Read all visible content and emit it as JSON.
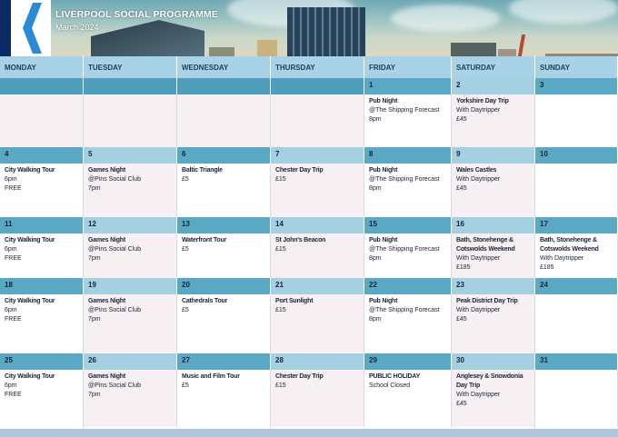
{
  "header": {
    "title": "LIVERPOOL SOCIAL PROGRAMME",
    "subtitle": "March 2024"
  },
  "weekdays": [
    "MONDAY",
    "TUESDAY",
    "WEDNESDAY",
    "THURSDAY",
    "FRIDAY",
    "SATURDAY",
    "SUNDAY"
  ],
  "weeks": [
    {
      "days": [
        {
          "num": "",
          "lines": []
        },
        {
          "num": "",
          "lines": []
        },
        {
          "num": "",
          "lines": []
        },
        {
          "num": "",
          "lines": []
        },
        {
          "num": "1",
          "lines": [
            "Pub Night",
            "@The Shipping Forecast",
            "8pm"
          ]
        },
        {
          "num": "2",
          "lines": [
            "Yorkshire Day Trip",
            "With Daytripper",
            "£45"
          ]
        },
        {
          "num": "3",
          "lines": []
        }
      ]
    },
    {
      "days": [
        {
          "num": "4",
          "lines": [
            "City Walking Tour",
            "6pm",
            "FREE"
          ]
        },
        {
          "num": "5",
          "lines": [
            "Games Night",
            "@Pins Social Club",
            "7pm"
          ]
        },
        {
          "num": "6",
          "lines": [
            "Baltic Triangle",
            "£5"
          ]
        },
        {
          "num": "7",
          "lines": [
            "Chester Day Trip",
            "£15"
          ]
        },
        {
          "num": "8",
          "lines": [
            "Pub Night",
            "@The Shipping Forecast",
            "8pm"
          ]
        },
        {
          "num": "9",
          "lines": [
            "Wales Castles",
            "With Daytripper",
            "£45"
          ]
        },
        {
          "num": "10",
          "lines": []
        }
      ]
    },
    {
      "days": [
        {
          "num": "11",
          "lines": [
            "City Walking Tour",
            "6pm",
            "FREE"
          ]
        },
        {
          "num": "12",
          "lines": [
            "Games Night",
            "@Pins Social Club",
            "7pm"
          ]
        },
        {
          "num": "13",
          "lines": [
            "Waterfront Tour",
            "£5"
          ]
        },
        {
          "num": "14",
          "lines": [
            "St John's Beacon",
            "£15"
          ]
        },
        {
          "num": "15",
          "lines": [
            "Pub Night",
            "@The Shipping Forecast",
            "8pm"
          ]
        },
        {
          "num": "16",
          "lines": [
            "Bath, Stonehenge &",
            "Cotswolds Weekend",
            "With Daytripper",
            "£185"
          ]
        },
        {
          "num": "17",
          "lines": [
            "Bath, Stonehenge &",
            "Cotswolds Weekend",
            "With Daytripper",
            "£185"
          ]
        }
      ]
    },
    {
      "days": [
        {
          "num": "18",
          "lines": [
            "City Walking Tour",
            "6pm",
            "FREE"
          ]
        },
        {
          "num": "19",
          "lines": [
            "Games Night",
            "@Pins Social Club",
            "7pm"
          ]
        },
        {
          "num": "20",
          "lines": [
            "Cathedrals Tour",
            "£5"
          ]
        },
        {
          "num": "21",
          "lines": [
            "Port Sunlight",
            "£15"
          ]
        },
        {
          "num": "22",
          "lines": [
            "Pub Night",
            "@The Shipping Forecast",
            "8pm"
          ]
        },
        {
          "num": "23",
          "lines": [
            "Peak District Day Trip",
            "With Daytripper",
            "£45"
          ]
        },
        {
          "num": "24",
          "lines": []
        }
      ]
    },
    {
      "days": [
        {
          "num": "25",
          "lines": [
            "City Walking Tour",
            "6pm",
            "FREE"
          ]
        },
        {
          "num": "26",
          "lines": [
            "Games Night",
            "@Pins Social Club",
            "7pm"
          ]
        },
        {
          "num": "27",
          "lines": [
            "Music and Film Tour",
            "£5"
          ]
        },
        {
          "num": "28",
          "lines": [
            "Chester Day Trip",
            "£15"
          ]
        },
        {
          "num": "29",
          "lines": [
            "PUBLIC HOLIDAY",
            "School Closed"
          ]
        },
        {
          "num": "30",
          "lines": [
            "Anglesey & Snowdonia",
            "Day Trip",
            "With Daytripper",
            "£45"
          ]
        },
        {
          "num": "31",
          "lines": []
        }
      ]
    }
  ]
}
